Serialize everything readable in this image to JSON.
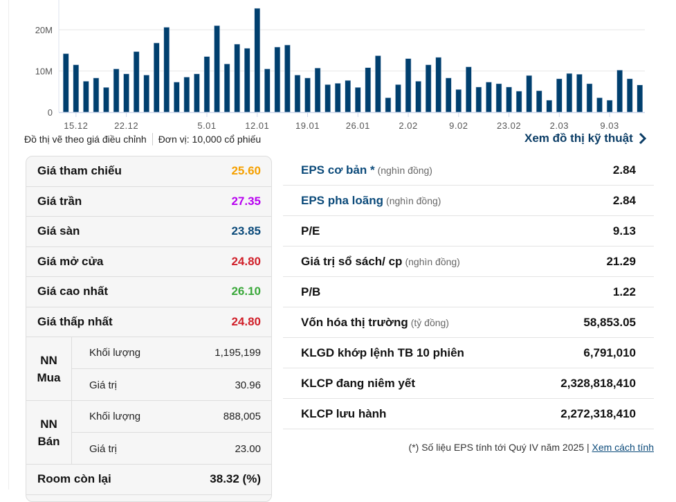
{
  "chart_data": {
    "type": "bar",
    "title": "",
    "ylabel": "",
    "ylim": [
      0,
      26
    ],
    "yticks": [
      {
        "value": 0,
        "label": "0"
      },
      {
        "value": 10,
        "label": "10M"
      },
      {
        "value": 20,
        "label": "20M"
      }
    ],
    "xticks": [
      {
        "index": 1,
        "label": "15.12"
      },
      {
        "index": 6,
        "label": "22.12"
      },
      {
        "index": 14,
        "label": "5.01"
      },
      {
        "index": 19,
        "label": "12.01"
      },
      {
        "index": 24,
        "label": "19.01"
      },
      {
        "index": 29,
        "label": "26.01"
      },
      {
        "index": 34,
        "label": "2.02"
      },
      {
        "index": 39,
        "label": "9.02"
      },
      {
        "index": 44,
        "label": "23.02"
      },
      {
        "index": 49,
        "label": "2.03"
      },
      {
        "index": 54,
        "label": "9.03"
      }
    ],
    "values": [
      14.2,
      11.5,
      7.5,
      8.3,
      6.0,
      10.5,
      9.3,
      14.7,
      9.0,
      16.8,
      20.6,
      7.3,
      8.5,
      9.3,
      13.5,
      21.0,
      11.7,
      16.5,
      15.5,
      25.2,
      10.5,
      15.8,
      16.3,
      9.0,
      8.3,
      10.7,
      6.7,
      7.0,
      7.7,
      6.0,
      10.8,
      13.7,
      3.5,
      6.7,
      13.0,
      7.5,
      11.5,
      13.3,
      8.3,
      5.5,
      11.0,
      6.1,
      7.3,
      6.9,
      6.1,
      5.1,
      8.9,
      5.2,
      2.9,
      8.1,
      9.4,
      9.2,
      6.9,
      3.5,
      2.9,
      10.2,
      8.1,
      6.6
    ],
    "color": "#003f6e"
  },
  "notes": {
    "adjusted": "Đồ thị vẽ theo giá điều chỉnh",
    "unit": "Đơn vị: 10,000 cổ phiếu",
    "tech_link": "Xem đồ thị kỹ thuật"
  },
  "prices": [
    {
      "label": "Giá tham chiếu",
      "value": "25.60",
      "color": "#f5a000"
    },
    {
      "label": "Giá trần",
      "value": "27.35",
      "color": "#b700f0"
    },
    {
      "label": "Giá sàn",
      "value": "23.85",
      "color": "#0b4a7a"
    },
    {
      "label": "Giá mở cửa",
      "value": "24.80",
      "color": "#d0202a"
    },
    {
      "label": "Giá cao nhất",
      "value": "26.10",
      "color": "#3aa83a"
    },
    {
      "label": "Giá thấp nhất",
      "value": "24.80",
      "color": "#d0202a"
    }
  ],
  "foreign": {
    "buy": {
      "label": "NN Mua",
      "l1": "NN",
      "l2": "Mua",
      "volume_label": "Khối lượng",
      "volume": "1,195,199",
      "value_label": "Giá trị",
      "value": "30.96"
    },
    "sell": {
      "label": "NN Bán",
      "l1": "NN",
      "l2": "Bán",
      "volume_label": "Khối lượng",
      "volume": "888,005",
      "value_label": "Giá trị",
      "value": "23.00"
    },
    "room_label": "Room còn lại",
    "room": "38.32 (%)"
  },
  "metrics": [
    {
      "label": "EPS cơ bản *",
      "unit": "(nghìn đồng)",
      "value": "2.84",
      "link": true
    },
    {
      "label": "EPS pha loãng",
      "unit": "(nghìn đồng)",
      "value": "2.84",
      "link": true
    },
    {
      "label": "P/E",
      "unit": "",
      "value": "9.13"
    },
    {
      "label": "Giá trị sổ sách/ cp",
      "unit": "(nghìn đồng)",
      "value": "21.29"
    },
    {
      "label": "P/B",
      "unit": "",
      "value": "1.22"
    },
    {
      "label": "Vốn hóa thị trường",
      "unit": "(tỷ đồng)",
      "value": "58,853.05"
    },
    {
      "label": "KLGD khớp lệnh TB 10 phiên",
      "unit": "",
      "value": "6,791,010"
    },
    {
      "label": "KLCP đang niêm yết",
      "unit": "",
      "value": "2,328,818,410"
    },
    {
      "label": "KLCP lưu hành",
      "unit": "",
      "value": "2,272,318,410"
    }
  ],
  "footnote": {
    "text": "(*) Số liệu EPS tính tới Quý IV năm 2025 | ",
    "link": "Xem cách tính"
  }
}
